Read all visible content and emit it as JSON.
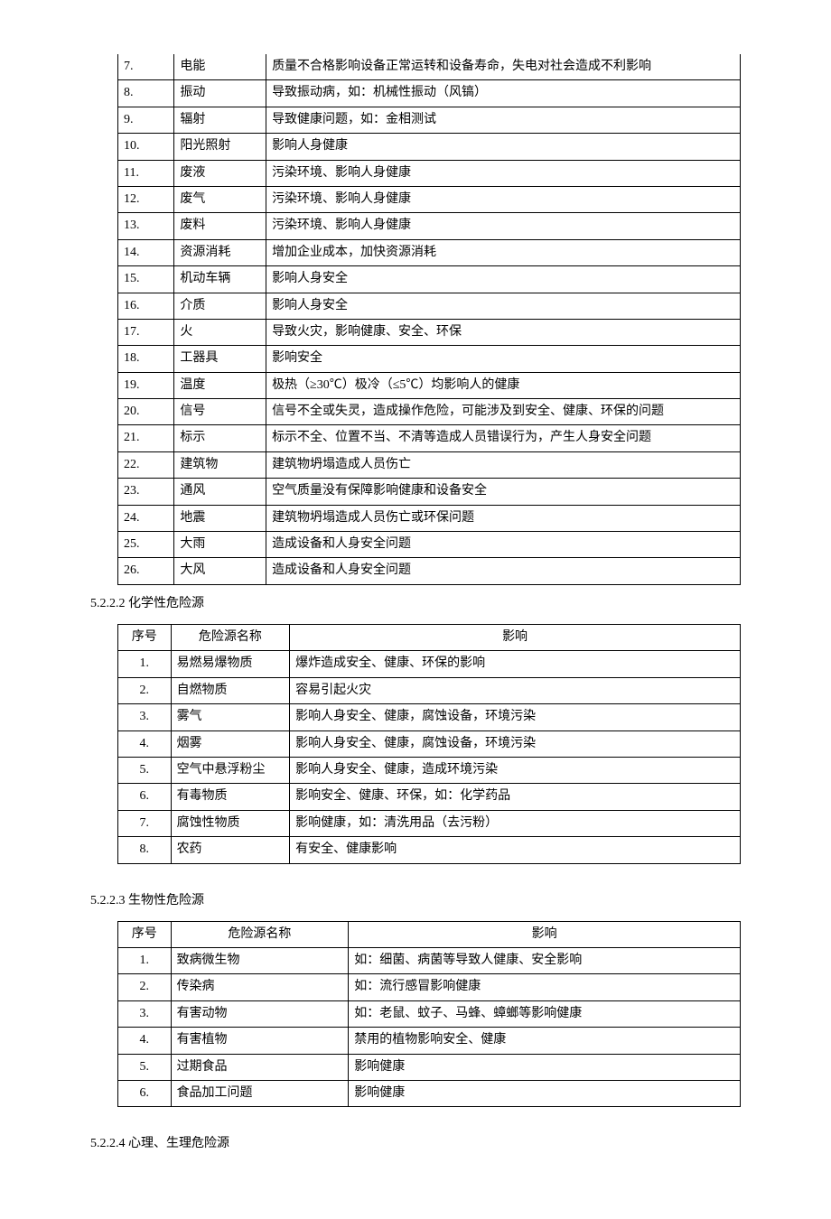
{
  "table1": {
    "rows": [
      {
        "seq": "7.",
        "name": "电能",
        "impact": "质量不合格影响设备正常运转和设备寿命，失电对社会造成不利影响"
      },
      {
        "seq": "8.",
        "name": "振动",
        "impact": "导致振动病，如：机械性振动（风镐）"
      },
      {
        "seq": "9.",
        "name": "辐射",
        "impact": "导致健康问题，如：金相测试"
      },
      {
        "seq": "10.",
        "name": "阳光照射",
        "impact": "影响人身健康"
      },
      {
        "seq": "11.",
        "name": "废液",
        "impact": "污染环境、影响人身健康"
      },
      {
        "seq": "12.",
        "name": "废气",
        "impact": "污染环境、影响人身健康"
      },
      {
        "seq": "13.",
        "name": "废料",
        "impact": "污染环境、影响人身健康"
      },
      {
        "seq": "14.",
        "name": "资源消耗",
        "impact": "增加企业成本，加快资源消耗"
      },
      {
        "seq": "15.",
        "name": "机动车辆",
        "impact": "影响人身安全"
      },
      {
        "seq": "16.",
        "name": "介质",
        "impact": "影响人身安全"
      },
      {
        "seq": "17.",
        "name": "火",
        "impact": "导致火灾，影响健康、安全、环保"
      },
      {
        "seq": "18.",
        "name": "工器具",
        "impact": "影响安全"
      },
      {
        "seq": "19.",
        "name": "温度",
        "impact": "极热（≥30℃）极冷（≤5℃）均影响人的健康"
      },
      {
        "seq": "20.",
        "name": "信号",
        "impact": "信号不全或失灵，造成操作危险，可能涉及到安全、健康、环保的问题"
      },
      {
        "seq": "21.",
        "name": "标示",
        "impact": "标示不全、位置不当、不清等造成人员错误行为，产生人身安全问题"
      },
      {
        "seq": "22.",
        "name": "建筑物",
        "impact": "建筑物坍塌造成人员伤亡"
      },
      {
        "seq": "23.",
        "name": "通风",
        "impact": "空气质量没有保障影响健康和设备安全"
      },
      {
        "seq": "24.",
        "name": "地震",
        "impact": "建筑物坍塌造成人员伤亡或环保问题"
      },
      {
        "seq": "25.",
        "name": "大雨",
        "impact": "造成设备和人身安全问题"
      },
      {
        "seq": "26.",
        "name": "大风",
        "impact": "造成设备和人身安全问题"
      }
    ]
  },
  "section2": {
    "heading": "5.2.2.2  化学性危险源",
    "columns": {
      "seq": "序号",
      "name": "危险源名称",
      "impact": "影响"
    },
    "rows": [
      {
        "seq": "1.",
        "name": "易燃易爆物质",
        "impact": "爆炸造成安全、健康、环保的影响"
      },
      {
        "seq": "2.",
        "name": "自燃物质",
        "impact": "容易引起火灾"
      },
      {
        "seq": "3.",
        "name": "雾气",
        "impact": "影响人身安全、健康，腐蚀设备，环境污染"
      },
      {
        "seq": "4.",
        "name": "烟雾",
        "impact": "影响人身安全、健康，腐蚀设备，环境污染"
      },
      {
        "seq": "5.",
        "name": "空气中悬浮粉尘",
        "impact": "影响人身安全、健康，造成环境污染"
      },
      {
        "seq": "6.",
        "name": "有毒物质",
        "impact": "影响安全、健康、环保，如：化学药品"
      },
      {
        "seq": "7.",
        "name": "腐蚀性物质",
        "impact": "影响健康，如：清洗用品（去污粉）"
      },
      {
        "seq": "8.",
        "name": "农药",
        "impact": "有安全、健康影响"
      }
    ]
  },
  "section3": {
    "heading": "5.2.2.3  生物性危险源",
    "columns": {
      "seq": "序号",
      "name": "危险源名称",
      "impact": "影响"
    },
    "rows": [
      {
        "seq": "1.",
        "name": "致病微生物",
        "impact": "如：细菌、病菌等导致人健康、安全影响"
      },
      {
        "seq": "2.",
        "name": "传染病",
        "impact": "如：流行感冒影响健康"
      },
      {
        "seq": "3.",
        "name": "有害动物",
        "impact": "如：老鼠、蚊子、马蜂、蟑螂等影响健康"
      },
      {
        "seq": "4.",
        "name": "有害植物",
        "impact": "禁用的植物影响安全、健康"
      },
      {
        "seq": "5.",
        "name": "过期食品",
        "impact": "影响健康"
      },
      {
        "seq": "6.",
        "name": "食品加工问题",
        "impact": "影响健康"
      }
    ]
  },
  "section4": {
    "heading": "5.2.2.4  心理、生理危险源"
  }
}
